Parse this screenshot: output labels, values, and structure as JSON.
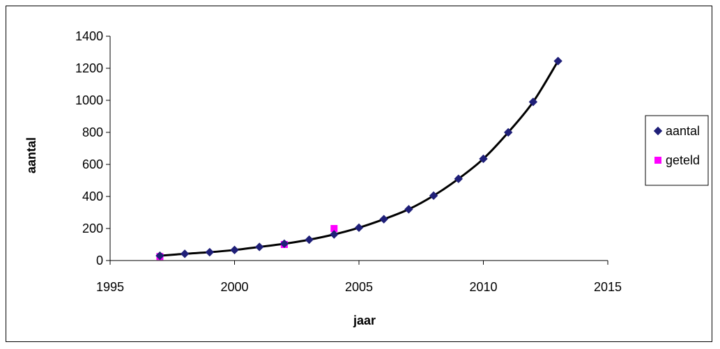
{
  "chart_data": {
    "type": "scatter",
    "title": "",
    "xlabel": "jaar",
    "ylabel": "aantal",
    "xlim": [
      1995,
      2015
    ],
    "ylim": [
      0,
      1400
    ],
    "xticks": [
      1995,
      2000,
      2005,
      2010,
      2015
    ],
    "yticks": [
      0,
      200,
      400,
      600,
      800,
      1000,
      1200,
      1400
    ],
    "grid": false,
    "legend_position": "right",
    "series": [
      {
        "name": "aantal",
        "marker": "diamond",
        "color": "#1f1f78",
        "x": [
          1997,
          1998,
          1999,
          2000,
          2001,
          2002,
          2003,
          2004,
          2005,
          2006,
          2007,
          2008,
          2009,
          2010,
          2011,
          2012,
          2013
        ],
        "y": [
          30,
          42,
          52,
          66,
          85,
          105,
          130,
          163,
          205,
          258,
          320,
          405,
          510,
          635,
          800,
          990,
          1245
        ]
      },
      {
        "name": "geteld",
        "marker": "square",
        "color": "#ff00ff",
        "x": [
          1997,
          2002,
          2004
        ],
        "y": [
          25,
          100,
          200
        ]
      }
    ],
    "trendline": {
      "color": "#000000",
      "x": [
        1997,
        1998,
        1999,
        2000,
        2001,
        2002,
        2003,
        2004,
        2005,
        2006,
        2007,
        2008,
        2009,
        2010,
        2011,
        2012,
        2013
      ],
      "y": [
        30,
        42,
        52,
        66,
        85,
        105,
        130,
        163,
        205,
        258,
        320,
        405,
        510,
        635,
        800,
        990,
        1245
      ]
    }
  }
}
